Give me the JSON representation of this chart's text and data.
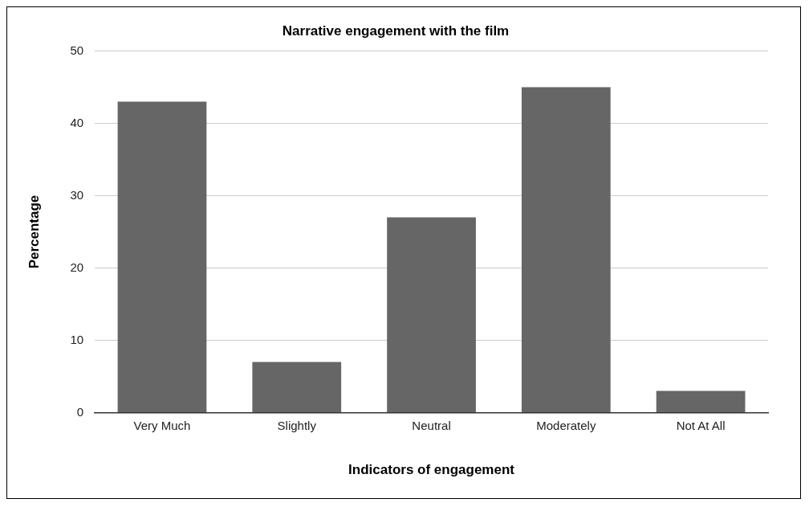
{
  "chart_data": {
    "type": "bar",
    "title": "Narrative engagement with the film",
    "xlabel": "Indicators of engagement",
    "ylabel": "Percentage",
    "categories": [
      "Very Much",
      "Slightly",
      "Neutral",
      "Moderately",
      "Not At All"
    ],
    "values": [
      43,
      7,
      27,
      45,
      3
    ],
    "color": "#666666",
    "ylim": [
      0,
      50
    ],
    "yticks": [
      0,
      10,
      20,
      30,
      40,
      50
    ],
    "grid": "y",
    "legend": false
  }
}
